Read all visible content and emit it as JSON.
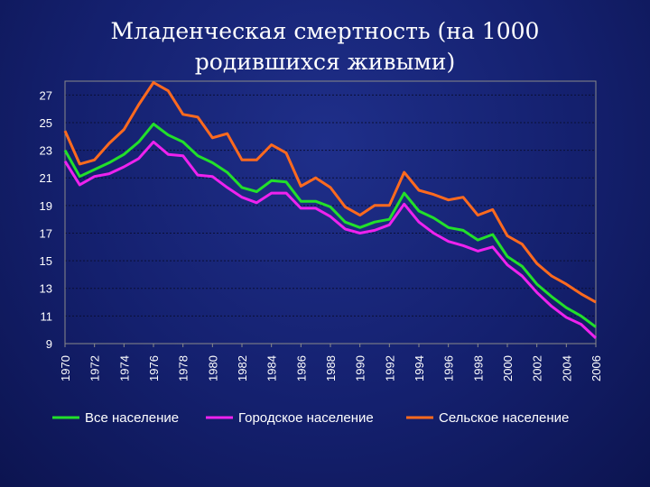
{
  "slide": {
    "title": "Младенческая смертность (на 1000 родившихся живыми)"
  },
  "chart_data": {
    "type": "line",
    "title": "",
    "xlabel": "",
    "ylabel": "",
    "x": [
      1970,
      1971,
      1972,
      1973,
      1974,
      1975,
      1976,
      1977,
      1978,
      1979,
      1980,
      1981,
      1982,
      1983,
      1984,
      1985,
      1986,
      1987,
      1988,
      1989,
      1990,
      1991,
      1992,
      1993,
      1994,
      1995,
      1996,
      1997,
      1998,
      1999,
      2000,
      2001,
      2002,
      2003,
      2004,
      2005,
      2006
    ],
    "xticks": [
      "1970",
      "1972",
      "1974",
      "1976",
      "1978",
      "1980",
      "1982",
      "1984",
      "1986",
      "1988",
      "1990",
      "1992",
      "1994",
      "1996",
      "1998",
      "2000",
      "2002",
      "2004",
      "2006"
    ],
    "yticks": [
      "9",
      "11",
      "13",
      "15",
      "17",
      "19",
      "21",
      "23",
      "25",
      "27"
    ],
    "ylim": [
      9,
      28
    ],
    "grid": "horizontal-dashed",
    "legend_position": "bottom",
    "series": [
      {
        "name": "Все население",
        "color": "#22e02a",
        "values": [
          23.0,
          21.1,
          21.6,
          22.1,
          22.7,
          23.6,
          24.9,
          24.1,
          23.6,
          22.6,
          22.1,
          21.4,
          20.3,
          20.0,
          20.8,
          20.7,
          19.3,
          19.3,
          18.9,
          17.8,
          17.4,
          17.8,
          18.0,
          19.9,
          18.6,
          18.1,
          17.4,
          17.2,
          16.5,
          16.9,
          15.3,
          14.6,
          13.3,
          12.4,
          11.6,
          11.0,
          10.2
        ]
      },
      {
        "name": "Городское население",
        "color": "#ee22ee",
        "values": [
          22.2,
          20.5,
          21.1,
          21.3,
          21.8,
          22.4,
          23.6,
          22.7,
          22.6,
          21.2,
          21.1,
          20.3,
          19.6,
          19.2,
          19.9,
          19.9,
          18.8,
          18.8,
          18.2,
          17.3,
          17.0,
          17.2,
          17.6,
          19.1,
          17.8,
          17.0,
          16.4,
          16.1,
          15.7,
          16.0,
          14.7,
          13.9,
          12.7,
          11.7,
          10.9,
          10.4,
          9.4
        ]
      },
      {
        "name": "Сельское население",
        "color": "#ff6a1e",
        "values": [
          24.4,
          22.0,
          22.3,
          23.5,
          24.5,
          26.3,
          27.9,
          27.3,
          25.6,
          25.4,
          23.9,
          24.2,
          22.3,
          22.3,
          23.4,
          22.8,
          20.4,
          21.0,
          20.3,
          18.9,
          18.3,
          19.0,
          19.0,
          21.4,
          20.1,
          19.8,
          19.4,
          19.6,
          18.3,
          18.7,
          16.8,
          16.2,
          14.8,
          13.9,
          13.3,
          12.6,
          12.0
        ]
      }
    ]
  }
}
